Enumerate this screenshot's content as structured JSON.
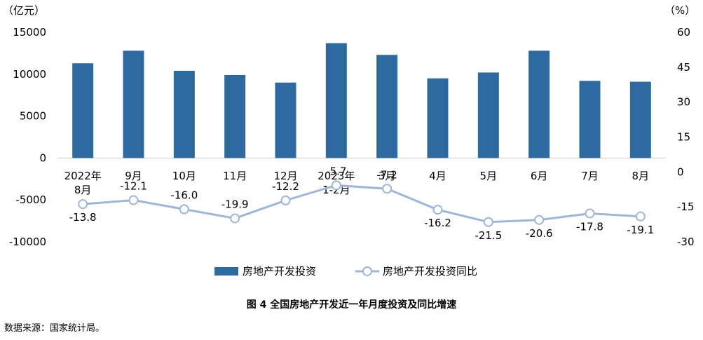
{
  "chart_data": {
    "type": "bar",
    "categories": [
      "2022年8月",
      "9月",
      "10月",
      "11月",
      "12月",
      "2023年1-2月",
      "3月",
      "4月",
      "5月",
      "6月",
      "7月",
      "8月"
    ],
    "category_lines": [
      [
        "2022年",
        "8月"
      ],
      [
        "9月"
      ],
      [
        "10月"
      ],
      [
        "11月"
      ],
      [
        "12月"
      ],
      [
        "2023年",
        "1-2月"
      ],
      [
        "3月"
      ],
      [
        "4月"
      ],
      [
        "5月"
      ],
      [
        "6月"
      ],
      [
        "7月"
      ],
      [
        "8月"
      ]
    ],
    "series": [
      {
        "name": "房地产开发投资",
        "type": "bar",
        "axis": "left",
        "values": [
          11300,
          12800,
          10400,
          9900,
          9000,
          13700,
          12300,
          9500,
          10200,
          12800,
          9200,
          9100
        ],
        "color": "#2e6a9f"
      },
      {
        "name": "房地产开发投资同比",
        "type": "line",
        "axis": "right",
        "values": [
          -13.8,
          -12.1,
          -16.0,
          -19.9,
          -12.2,
          -5.7,
          -7.2,
          -16.2,
          -21.5,
          -20.6,
          -17.8,
          -19.1
        ],
        "labels": [
          "-13.8",
          "-12.1",
          "-16.0",
          "-19.9",
          "-12.2",
          "-5.7",
          "-7.2",
          "-16.2",
          "-21.5",
          "-20.6",
          "-17.8",
          "-19.1"
        ],
        "color": "#9fb6d6"
      }
    ],
    "y_left": {
      "unit": "（亿元）",
      "ticks": [
        "15000",
        "10000",
        "5000",
        "0",
        "-5000",
        "-10000"
      ],
      "lim": [
        -10000,
        15000
      ]
    },
    "y_right": {
      "unit": "（%）",
      "ticks": [
        "60",
        "45",
        "30",
        "15",
        "0",
        "-15",
        "-30"
      ],
      "lim": [
        -30,
        60
      ]
    },
    "legend_position": "bottom",
    "grid": false
  },
  "caption": "图 4   全国房地产开发近一年月度投资及同比增速",
  "source_note": "数据来源：国家统计局。"
}
